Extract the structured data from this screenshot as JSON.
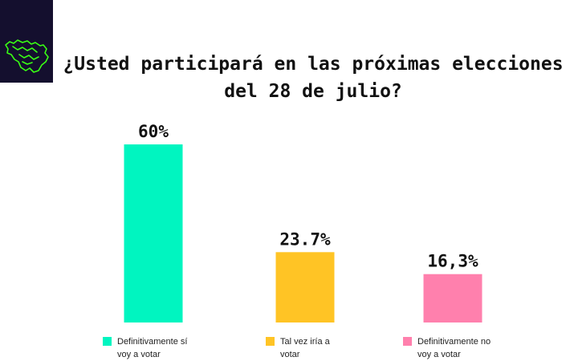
{
  "title_lines": [
    "¿Usted participará en las próximas elecciones",
    "del 28 de julio?"
  ],
  "logo": {
    "icon": "venezuela-map-icon",
    "color": "#39ff14"
  },
  "chart_data": {
    "type": "bar",
    "title": "¿Usted participará en las próximas elecciones del 28 de julio?",
    "categories": [
      "Definitivamente sí voy a votar",
      "Tal vez iría a votar",
      "Definitivamente no voy a votar"
    ],
    "values": [
      60,
      23.7,
      16.3
    ],
    "value_labels": [
      "60%",
      "23.7%",
      "16,3%"
    ],
    "colors": [
      "#00f5c0",
      "#ffc425",
      "#ff80ad"
    ],
    "legend_position": "bottom",
    "grid": false,
    "ylim": [
      0,
      60
    ]
  },
  "legend": [
    {
      "line1": "Definitivamente sí",
      "line2": "voy a votar",
      "color": "#00f5c0"
    },
    {
      "line1": "Tal vez iría a",
      "line2": "votar",
      "color": "#ffc425"
    },
    {
      "line1": "Definitivamente no",
      "line2": "voy a votar",
      "color": "#ff80ad"
    }
  ]
}
